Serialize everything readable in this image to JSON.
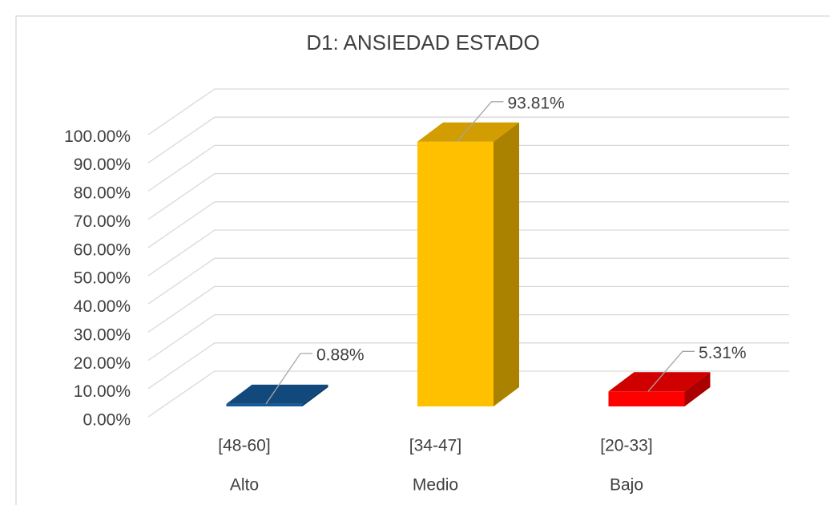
{
  "chart_data": {
    "type": "bar3d",
    "title": "D1: ANSIEDAD ESTADO",
    "categories": [
      "[48-60]",
      "[34-47]",
      "[20-33]"
    ],
    "category_labels": [
      "Alto",
      "Medio",
      "Bajo"
    ],
    "values": [
      0.88,
      93.81,
      5.31
    ],
    "value_labels": [
      "0.88%",
      "93.81%",
      "5.31%"
    ],
    "colors": [
      "#175a99",
      "#ffc000",
      "#ff0000"
    ],
    "ylim": [
      0,
      100
    ],
    "yticks": [
      {
        "value": 0,
        "label": "0.00%"
      },
      {
        "value": 10,
        "label": "10.00%"
      },
      {
        "value": 20,
        "label": "20.00%"
      },
      {
        "value": 30,
        "label": "30.00%"
      },
      {
        "value": 40,
        "label": "40.00%"
      },
      {
        "value": 50,
        "label": "50.00%"
      },
      {
        "value": 60,
        "label": "60.00%"
      },
      {
        "value": 70,
        "label": "70.00%"
      },
      {
        "value": 80,
        "label": "80.00%"
      },
      {
        "value": 90,
        "label": "90.00%"
      },
      {
        "value": 100,
        "label": "100.00%"
      }
    ],
    "grid": true
  }
}
